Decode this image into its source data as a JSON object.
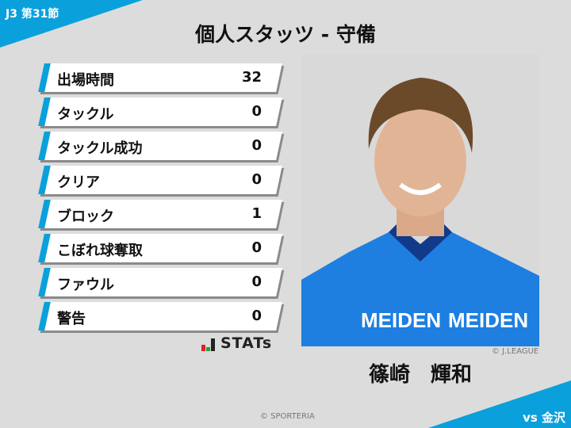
{
  "header": {
    "round": "J3 第31節",
    "title": "個人スタッツ - 守備"
  },
  "stats": [
    {
      "label": "出場時間",
      "value": "32"
    },
    {
      "label": "タックル",
      "value": "0"
    },
    {
      "label": "タックル成功",
      "value": "0"
    },
    {
      "label": "クリア",
      "value": "0"
    },
    {
      "label": "ブロック",
      "value": "1"
    },
    {
      "label": "こぼれ球奪取",
      "value": "0"
    },
    {
      "label": "ファウル",
      "value": "0"
    },
    {
      "label": "警告",
      "value": "0"
    }
  ],
  "logo": {
    "text": "STATs"
  },
  "player": {
    "name": "篠崎　輝和",
    "photo_credit": "© J.LEAGUE",
    "jersey_text": "MEIDEN"
  },
  "footer": {
    "credit": "© SPORTERIA",
    "opponent": "vs 金沢"
  },
  "colors": {
    "accent": "#0aa0dc",
    "background": "#dcdcdc"
  }
}
